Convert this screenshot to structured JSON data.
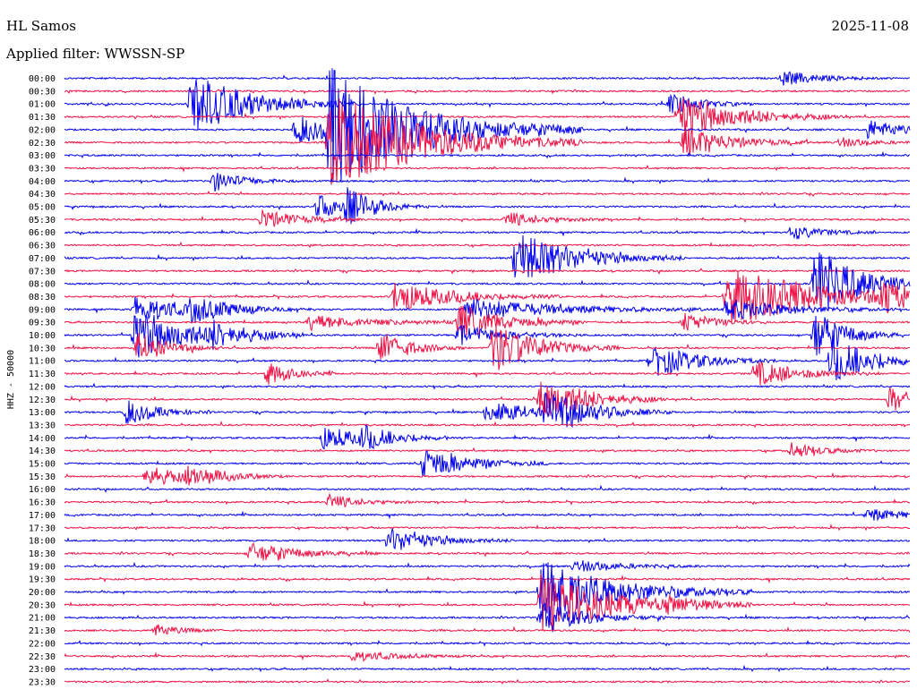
{
  "header": {
    "station": "HL Samos",
    "date": "2025-11-08",
    "filter": "Applied filter: WWSSN-SP"
  },
  "chart_data": {
    "type": "line",
    "ylabel": "HHZ - 50000",
    "row_labels": [
      "00:00",
      "00:30",
      "01:00",
      "01:30",
      "02:00",
      "02:30",
      "03:00",
      "03:30",
      "04:00",
      "04:30",
      "05:00",
      "05:30",
      "06:00",
      "06:30",
      "07:00",
      "07:30",
      "08:00",
      "08:30",
      "09:00",
      "09:30",
      "10:00",
      "10:30",
      "11:00",
      "11:30",
      "12:00",
      "12:30",
      "13:00",
      "13:30",
      "14:00",
      "14:30",
      "15:00",
      "15:30",
      "16:00",
      "16:30",
      "17:00",
      "17:30",
      "18:00",
      "18:30",
      "19:00",
      "19:30",
      "20:00",
      "20:30",
      "21:00",
      "21:30",
      "22:00",
      "22:30",
      "23:00",
      "23:30"
    ],
    "trace_colors": [
      "#0000ee",
      "#ee1144"
    ],
    "event_minutes_in_row": [
      {
        "row": 0,
        "events": [
          {
            "t": 25.5,
            "amp": 0.6,
            "dur": 1.2
          }
        ]
      },
      {
        "row": 2,
        "events": [
          {
            "t": 4.5,
            "amp": 2.4,
            "dur": 2.0
          },
          {
            "t": 21.5,
            "amp": 0.9,
            "dur": 1.0
          }
        ]
      },
      {
        "row": 3,
        "events": [
          {
            "t": 21.8,
            "amp": 1.8,
            "dur": 2.0
          }
        ]
      },
      {
        "row": 4,
        "events": [
          {
            "t": 8.2,
            "amp": 1.2,
            "dur": 1.5
          },
          {
            "t": 9.4,
            "amp": 4.5,
            "dur": 3.0
          },
          {
            "t": 28.5,
            "amp": 0.8,
            "dur": 1.2
          }
        ]
      },
      {
        "row": 5,
        "events": [
          {
            "t": 9.4,
            "amp": 4.0,
            "dur": 3.0
          },
          {
            "t": 22.0,
            "amp": 1.3,
            "dur": 1.5
          },
          {
            "t": 27.5,
            "amp": 0.4,
            "dur": 1.0
          }
        ]
      },
      {
        "row": 8,
        "events": [
          {
            "t": 5.3,
            "amp": 0.8,
            "dur": 1.0
          }
        ]
      },
      {
        "row": 10,
        "events": [
          {
            "t": 9.0,
            "amp": 1.0,
            "dur": 1.0
          },
          {
            "t": 10.0,
            "amp": 1.2,
            "dur": 1.0
          }
        ]
      },
      {
        "row": 11,
        "events": [
          {
            "t": 7.0,
            "amp": 0.8,
            "dur": 1.2
          },
          {
            "t": 15.7,
            "amp": 0.6,
            "dur": 1.2
          }
        ]
      },
      {
        "row": 12,
        "events": [
          {
            "t": 25.8,
            "amp": 0.6,
            "dur": 1.0
          }
        ]
      },
      {
        "row": 14,
        "events": [
          {
            "t": 16.0,
            "amp": 2.2,
            "dur": 2.0
          }
        ]
      },
      {
        "row": 16,
        "events": [
          {
            "t": 26.6,
            "amp": 3.0,
            "dur": 1.5
          }
        ]
      },
      {
        "row": 17,
        "events": [
          {
            "t": 11.7,
            "amp": 1.2,
            "dur": 2.0
          },
          {
            "t": 23.5,
            "amp": 2.5,
            "dur": 3.0
          },
          {
            "t": 29.0,
            "amp": 1.2,
            "dur": 1.0
          }
        ]
      },
      {
        "row": 18,
        "events": [
          {
            "t": 2.5,
            "amp": 1.2,
            "dur": 1.5
          },
          {
            "t": 4.5,
            "amp": 0.8,
            "dur": 1.5
          },
          {
            "t": 14.2,
            "amp": 0.9,
            "dur": 3.0
          },
          {
            "t": 23.5,
            "amp": 0.9,
            "dur": 2.0
          }
        ]
      },
      {
        "row": 19,
        "events": [
          {
            "t": 8.7,
            "amp": 0.6,
            "dur": 2.0
          },
          {
            "t": 14.0,
            "amp": 1.4,
            "dur": 1.5
          },
          {
            "t": 22.0,
            "amp": 0.8,
            "dur": 1.0
          }
        ]
      },
      {
        "row": 20,
        "events": [
          {
            "t": 2.5,
            "amp": 2.0,
            "dur": 2.0
          },
          {
            "t": 5.2,
            "amp": 0.8,
            "dur": 1.0
          },
          {
            "t": 14.0,
            "amp": 0.8,
            "dur": 1.5
          },
          {
            "t": 26.6,
            "amp": 2.0,
            "dur": 1.0
          }
        ]
      },
      {
        "row": 21,
        "events": [
          {
            "t": 2.6,
            "amp": 1.2,
            "dur": 1.0
          },
          {
            "t": 11.2,
            "amp": 1.3,
            "dur": 1.0
          },
          {
            "t": 15.2,
            "amp": 2.0,
            "dur": 1.5
          }
        ]
      },
      {
        "row": 22,
        "events": [
          {
            "t": 20.8,
            "amp": 1.4,
            "dur": 1.5
          },
          {
            "t": 27.2,
            "amp": 1.8,
            "dur": 1.5
          }
        ]
      },
      {
        "row": 23,
        "events": [
          {
            "t": 7.2,
            "amp": 1.0,
            "dur": 0.8
          },
          {
            "t": 24.5,
            "amp": 1.0,
            "dur": 1.5
          }
        ]
      },
      {
        "row": 25,
        "events": [
          {
            "t": 16.9,
            "amp": 2.0,
            "dur": 1.5
          },
          {
            "t": 29.3,
            "amp": 1.0,
            "dur": 1.0
          }
        ]
      },
      {
        "row": 26,
        "events": [
          {
            "t": 2.2,
            "amp": 1.0,
            "dur": 1.0
          },
          {
            "t": 15.0,
            "amp": 1.0,
            "dur": 1.5
          },
          {
            "t": 17.1,
            "amp": 1.6,
            "dur": 1.5
          }
        ]
      },
      {
        "row": 28,
        "events": [
          {
            "t": 9.2,
            "amp": 0.9,
            "dur": 1.5
          },
          {
            "t": 10.6,
            "amp": 0.7,
            "dur": 1.0
          }
        ]
      },
      {
        "row": 29,
        "events": [
          {
            "t": 25.8,
            "amp": 0.6,
            "dur": 1.0
          }
        ]
      },
      {
        "row": 30,
        "events": [
          {
            "t": 12.7,
            "amp": 1.3,
            "dur": 1.5
          }
        ]
      },
      {
        "row": 31,
        "events": [
          {
            "t": 2.9,
            "amp": 0.8,
            "dur": 1.5
          },
          {
            "t": 4.4,
            "amp": 0.6,
            "dur": 1.2
          }
        ]
      },
      {
        "row": 33,
        "events": [
          {
            "t": 9.4,
            "amp": 0.6,
            "dur": 1.0
          }
        ]
      },
      {
        "row": 34,
        "events": [
          {
            "t": 28.5,
            "amp": 0.5,
            "dur": 1.2
          }
        ]
      },
      {
        "row": 36,
        "events": [
          {
            "t": 11.5,
            "amp": 1.0,
            "dur": 1.5
          }
        ]
      },
      {
        "row": 37,
        "events": [
          {
            "t": 6.6,
            "amp": 0.8,
            "dur": 1.5
          }
        ]
      },
      {
        "row": 38,
        "events": [
          {
            "t": 18.1,
            "amp": 0.5,
            "dur": 1.5
          }
        ]
      },
      {
        "row": 40,
        "events": [
          {
            "t": 16.9,
            "amp": 2.5,
            "dur": 2.5
          }
        ]
      },
      {
        "row": 41,
        "events": [
          {
            "t": 16.9,
            "amp": 2.5,
            "dur": 2.5
          },
          {
            "t": 21.3,
            "amp": 0.4,
            "dur": 1.0
          }
        ]
      },
      {
        "row": 42,
        "events": [
          {
            "t": 16.9,
            "amp": 1.2,
            "dur": 1.5
          }
        ]
      },
      {
        "row": 43,
        "events": [
          {
            "t": 3.2,
            "amp": 0.5,
            "dur": 0.8
          }
        ]
      },
      {
        "row": 45,
        "events": [
          {
            "t": 10.2,
            "amp": 0.4,
            "dur": 1.5
          }
        ]
      }
    ]
  }
}
